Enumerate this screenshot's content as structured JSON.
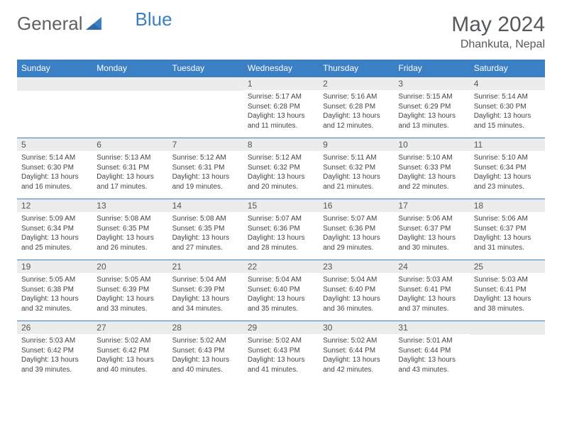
{
  "brand": {
    "part1": "General",
    "part2": "Blue"
  },
  "title": {
    "month": "May 2024",
    "location": "Dhankuta, Nepal"
  },
  "colors": {
    "header_bg": "#3b7fc4",
    "header_fg": "#ffffff",
    "daynum_bg": "#ececec",
    "accent_line": "#3b7fc4",
    "text": "#444444",
    "title_text": "#55595c"
  },
  "weekdays": [
    "Sunday",
    "Monday",
    "Tuesday",
    "Wednesday",
    "Thursday",
    "Friday",
    "Saturday"
  ],
  "weeks": [
    [
      {
        "n": "",
        "lines": []
      },
      {
        "n": "",
        "lines": []
      },
      {
        "n": "",
        "lines": []
      },
      {
        "n": "1",
        "lines": [
          "Sunrise: 5:17 AM",
          "Sunset: 6:28 PM",
          "Daylight: 13 hours",
          "and 11 minutes."
        ]
      },
      {
        "n": "2",
        "lines": [
          "Sunrise: 5:16 AM",
          "Sunset: 6:28 PM",
          "Daylight: 13 hours",
          "and 12 minutes."
        ]
      },
      {
        "n": "3",
        "lines": [
          "Sunrise: 5:15 AM",
          "Sunset: 6:29 PM",
          "Daylight: 13 hours",
          "and 13 minutes."
        ]
      },
      {
        "n": "4",
        "lines": [
          "Sunrise: 5:14 AM",
          "Sunset: 6:30 PM",
          "Daylight: 13 hours",
          "and 15 minutes."
        ]
      }
    ],
    [
      {
        "n": "5",
        "lines": [
          "Sunrise: 5:14 AM",
          "Sunset: 6:30 PM",
          "Daylight: 13 hours",
          "and 16 minutes."
        ]
      },
      {
        "n": "6",
        "lines": [
          "Sunrise: 5:13 AM",
          "Sunset: 6:31 PM",
          "Daylight: 13 hours",
          "and 17 minutes."
        ]
      },
      {
        "n": "7",
        "lines": [
          "Sunrise: 5:12 AM",
          "Sunset: 6:31 PM",
          "Daylight: 13 hours",
          "and 19 minutes."
        ]
      },
      {
        "n": "8",
        "lines": [
          "Sunrise: 5:12 AM",
          "Sunset: 6:32 PM",
          "Daylight: 13 hours",
          "and 20 minutes."
        ]
      },
      {
        "n": "9",
        "lines": [
          "Sunrise: 5:11 AM",
          "Sunset: 6:32 PM",
          "Daylight: 13 hours",
          "and 21 minutes."
        ]
      },
      {
        "n": "10",
        "lines": [
          "Sunrise: 5:10 AM",
          "Sunset: 6:33 PM",
          "Daylight: 13 hours",
          "and 22 minutes."
        ]
      },
      {
        "n": "11",
        "lines": [
          "Sunrise: 5:10 AM",
          "Sunset: 6:34 PM",
          "Daylight: 13 hours",
          "and 23 minutes."
        ]
      }
    ],
    [
      {
        "n": "12",
        "lines": [
          "Sunrise: 5:09 AM",
          "Sunset: 6:34 PM",
          "Daylight: 13 hours",
          "and 25 minutes."
        ]
      },
      {
        "n": "13",
        "lines": [
          "Sunrise: 5:08 AM",
          "Sunset: 6:35 PM",
          "Daylight: 13 hours",
          "and 26 minutes."
        ]
      },
      {
        "n": "14",
        "lines": [
          "Sunrise: 5:08 AM",
          "Sunset: 6:35 PM",
          "Daylight: 13 hours",
          "and 27 minutes."
        ]
      },
      {
        "n": "15",
        "lines": [
          "Sunrise: 5:07 AM",
          "Sunset: 6:36 PM",
          "Daylight: 13 hours",
          "and 28 minutes."
        ]
      },
      {
        "n": "16",
        "lines": [
          "Sunrise: 5:07 AM",
          "Sunset: 6:36 PM",
          "Daylight: 13 hours",
          "and 29 minutes."
        ]
      },
      {
        "n": "17",
        "lines": [
          "Sunrise: 5:06 AM",
          "Sunset: 6:37 PM",
          "Daylight: 13 hours",
          "and 30 minutes."
        ]
      },
      {
        "n": "18",
        "lines": [
          "Sunrise: 5:06 AM",
          "Sunset: 6:37 PM",
          "Daylight: 13 hours",
          "and 31 minutes."
        ]
      }
    ],
    [
      {
        "n": "19",
        "lines": [
          "Sunrise: 5:05 AM",
          "Sunset: 6:38 PM",
          "Daylight: 13 hours",
          "and 32 minutes."
        ]
      },
      {
        "n": "20",
        "lines": [
          "Sunrise: 5:05 AM",
          "Sunset: 6:39 PM",
          "Daylight: 13 hours",
          "and 33 minutes."
        ]
      },
      {
        "n": "21",
        "lines": [
          "Sunrise: 5:04 AM",
          "Sunset: 6:39 PM",
          "Daylight: 13 hours",
          "and 34 minutes."
        ]
      },
      {
        "n": "22",
        "lines": [
          "Sunrise: 5:04 AM",
          "Sunset: 6:40 PM",
          "Daylight: 13 hours",
          "and 35 minutes."
        ]
      },
      {
        "n": "23",
        "lines": [
          "Sunrise: 5:04 AM",
          "Sunset: 6:40 PM",
          "Daylight: 13 hours",
          "and 36 minutes."
        ]
      },
      {
        "n": "24",
        "lines": [
          "Sunrise: 5:03 AM",
          "Sunset: 6:41 PM",
          "Daylight: 13 hours",
          "and 37 minutes."
        ]
      },
      {
        "n": "25",
        "lines": [
          "Sunrise: 5:03 AM",
          "Sunset: 6:41 PM",
          "Daylight: 13 hours",
          "and 38 minutes."
        ]
      }
    ],
    [
      {
        "n": "26",
        "lines": [
          "Sunrise: 5:03 AM",
          "Sunset: 6:42 PM",
          "Daylight: 13 hours",
          "and 39 minutes."
        ]
      },
      {
        "n": "27",
        "lines": [
          "Sunrise: 5:02 AM",
          "Sunset: 6:42 PM",
          "Daylight: 13 hours",
          "and 40 minutes."
        ]
      },
      {
        "n": "28",
        "lines": [
          "Sunrise: 5:02 AM",
          "Sunset: 6:43 PM",
          "Daylight: 13 hours",
          "and 40 minutes."
        ]
      },
      {
        "n": "29",
        "lines": [
          "Sunrise: 5:02 AM",
          "Sunset: 6:43 PM",
          "Daylight: 13 hours",
          "and 41 minutes."
        ]
      },
      {
        "n": "30",
        "lines": [
          "Sunrise: 5:02 AM",
          "Sunset: 6:44 PM",
          "Daylight: 13 hours",
          "and 42 minutes."
        ]
      },
      {
        "n": "31",
        "lines": [
          "Sunrise: 5:01 AM",
          "Sunset: 6:44 PM",
          "Daylight: 13 hours",
          "and 43 minutes."
        ]
      },
      {
        "n": "",
        "lines": []
      }
    ]
  ]
}
